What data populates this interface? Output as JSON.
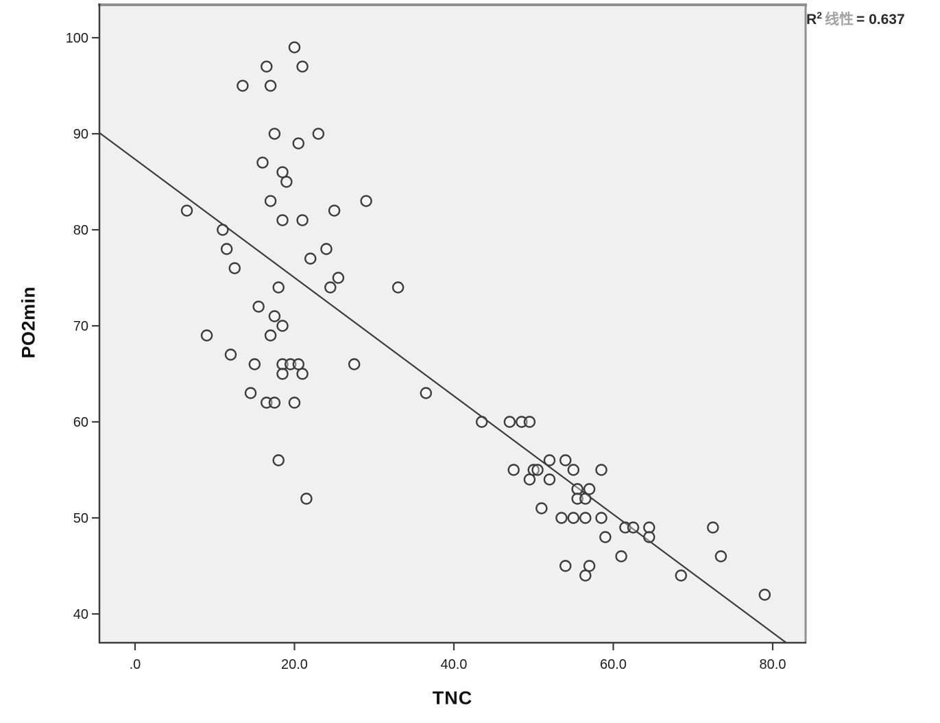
{
  "annotation": {
    "r_label": "R",
    "r_superscript": "2",
    "linear_label": "线性",
    "equals_value": "= 0.637"
  },
  "chart_data": {
    "type": "scatter",
    "title": "",
    "xlabel": "TNC",
    "ylabel": "PO2min",
    "x_ticks": [
      0,
      20,
      40,
      60,
      80
    ],
    "x_tick_labels": [
      ".0",
      "20.0",
      "40.0",
      "60.0",
      "80.0"
    ],
    "y_ticks": [
      40,
      50,
      60,
      70,
      80,
      90,
      100
    ],
    "y_tick_labels": [
      "40",
      "50",
      "60",
      "70",
      "80",
      "90",
      "100"
    ],
    "xlim": [
      -4.47,
      84.13
    ],
    "ylim": [
      37.0,
      103.43
    ],
    "grid": false,
    "legend": "none",
    "marker": "open-circle",
    "r_squared": 0.637,
    "regression_line": {
      "x1": -4.47,
      "y1": 90.1,
      "x2": 81.7,
      "y2": 37.0,
      "slope": -0.616,
      "intercept": 87.3
    },
    "colors": {
      "plot_background": "#f0f0f0",
      "outer_background": "#ffffff",
      "marker_stroke": "#3b3b3b",
      "line_stroke": "#3b3b3b",
      "frame_light": "#8f8f8f",
      "frame_dark": "#3b3b3b",
      "tick_text": "#1c1c1c"
    },
    "points": [
      [
        20,
        99
      ],
      [
        16.5,
        97
      ],
      [
        21,
        97
      ],
      [
        13.5,
        95
      ],
      [
        17,
        95
      ],
      [
        17.5,
        90
      ],
      [
        23,
        90
      ],
      [
        20.5,
        89
      ],
      [
        16,
        87
      ],
      [
        18.5,
        86
      ],
      [
        19,
        85
      ],
      [
        17,
        83
      ],
      [
        29,
        83
      ],
      [
        6.5,
        82
      ],
      [
        25,
        82
      ],
      [
        18.5,
        81
      ],
      [
        21,
        81
      ],
      [
        11,
        80
      ],
      [
        11.5,
        78
      ],
      [
        24,
        78
      ],
      [
        22,
        77
      ],
      [
        12.5,
        76
      ],
      [
        25.5,
        75
      ],
      [
        18,
        74
      ],
      [
        24.5,
        74
      ],
      [
        33,
        74
      ],
      [
        15.5,
        72
      ],
      [
        17.5,
        71
      ],
      [
        18.5,
        70
      ],
      [
        9,
        69
      ],
      [
        17,
        69
      ],
      [
        12,
        67
      ],
      [
        15,
        66
      ],
      [
        18.5,
        66
      ],
      [
        19.5,
        66
      ],
      [
        20.5,
        66
      ],
      [
        27.5,
        66
      ],
      [
        18.5,
        65
      ],
      [
        21,
        65
      ],
      [
        14.5,
        63
      ],
      [
        36.5,
        63
      ],
      [
        16.5,
        62
      ],
      [
        17.5,
        62
      ],
      [
        20,
        62
      ],
      [
        43.5,
        60
      ],
      [
        47,
        60
      ],
      [
        48.5,
        60
      ],
      [
        49.5,
        60
      ],
      [
        18,
        56
      ],
      [
        52,
        56
      ],
      [
        54,
        56
      ],
      [
        47.5,
        55
      ],
      [
        50,
        55
      ],
      [
        50.5,
        55
      ],
      [
        55,
        55
      ],
      [
        58.5,
        55
      ],
      [
        49.5,
        54
      ],
      [
        52,
        54
      ],
      [
        55.5,
        53
      ],
      [
        57,
        53
      ],
      [
        21.5,
        52
      ],
      [
        55.5,
        52
      ],
      [
        56.5,
        52
      ],
      [
        51,
        51
      ],
      [
        53.5,
        50
      ],
      [
        55,
        50
      ],
      [
        56.5,
        50
      ],
      [
        58.5,
        50
      ],
      [
        61.5,
        49
      ],
      [
        62.5,
        49
      ],
      [
        64.5,
        49
      ],
      [
        72.5,
        49
      ],
      [
        59,
        48
      ],
      [
        64.5,
        48
      ],
      [
        61,
        46
      ],
      [
        73.5,
        46
      ],
      [
        54,
        45
      ],
      [
        57,
        45
      ],
      [
        56.5,
        44
      ],
      [
        68.5,
        44
      ],
      [
        79,
        42
      ]
    ]
  }
}
